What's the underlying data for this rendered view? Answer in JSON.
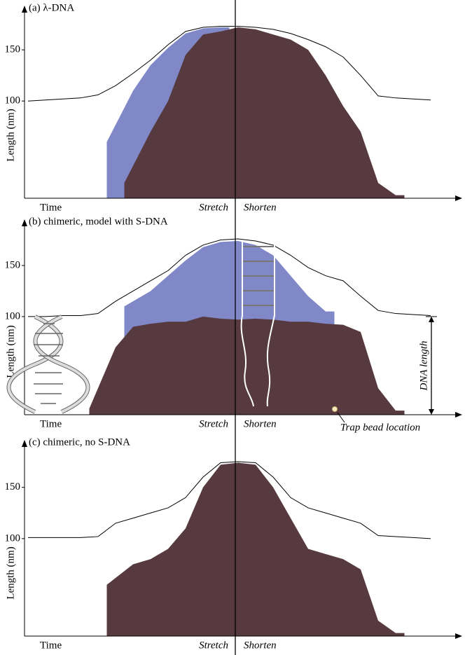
{
  "chart_data": [
    {
      "type": "area",
      "title": "(a) λ-DNA",
      "y_label": "Length (nm)",
      "annotations": [
        "Time",
        "Stretch",
        "Shorten"
      ],
      "categories": [
        null,
        null,
        null,
        null,
        null,
        null,
        null,
        null,
        null,
        null,
        null,
        null,
        null,
        null,
        null,
        null,
        null,
        null,
        null,
        null,
        null,
        null,
        null,
        null,
        null
      ],
      "ylim": [
        5,
        185
      ],
      "yticks": [
        100,
        150
      ],
      "series": [
        {
          "kind": "line",
          "color": "#000000",
          "values": [
            100,
            101,
            102,
            103,
            106,
            115,
            127,
            140,
            155,
            168,
            172,
            173,
            173,
            172,
            170,
            166,
            160,
            153,
            143,
            125,
            105,
            103,
            102,
            101,
            null
          ]
        },
        {
          "kind": "area",
          "color": "#8088c8",
          "values": [
            null,
            null,
            null,
            null,
            null,
            60,
            110,
            135,
            152,
            166,
            171,
            172,
            null,
            null,
            null,
            null,
            null,
            null,
            null,
            null,
            null,
            null,
            null,
            null,
            null
          ]
        },
        {
          "kind": "area",
          "color": "#573a3f",
          "values": [
            null,
            null,
            null,
            null,
            null,
            null,
            20,
            70,
            100,
            145,
            165,
            168,
            172,
            170,
            165,
            160,
            150,
            125,
            95,
            70,
            20,
            8,
            null,
            null,
            null
          ]
        }
      ]
    },
    {
      "type": "area",
      "title": "(b) chimeric, model with S-DNA",
      "y_label": "Length (nm)",
      "annotations": [
        "Time",
        "Stretch",
        "Shorten",
        "DNA length",
        "Trap bead location"
      ],
      "categories": [
        null,
        null,
        null,
        null,
        null,
        null,
        null,
        null,
        null,
        null,
        null,
        null,
        null,
        null,
        null,
        null,
        null,
        null,
        null,
        null,
        null,
        null,
        null,
        null,
        null
      ],
      "ylim": [
        4,
        187
      ],
      "yticks": [
        100,
        150
      ],
      "series": [
        {
          "kind": "line",
          "color": "#000000",
          "values": [
            100,
            100,
            101,
            101,
            103,
            115,
            125,
            135,
            145,
            160,
            170,
            175,
            176,
            174,
            170,
            160,
            148,
            140,
            135,
            120,
            106,
            103,
            102,
            101,
            null
          ]
        },
        {
          "kind": "area",
          "color": "#8088c8",
          "values": [
            null,
            null,
            null,
            null,
            null,
            null,
            110,
            125,
            140,
            155,
            168,
            173,
            174,
            170,
            160,
            140,
            120,
            105,
            null,
            null,
            null,
            null,
            null,
            null,
            null
          ]
        },
        {
          "kind": "area",
          "color": "#573a3f",
          "values": [
            null,
            null,
            null,
            null,
            10,
            70,
            90,
            93,
            95,
            95,
            100,
            98,
            97,
            98,
            97,
            95,
            95,
            93,
            92,
            85,
            30,
            8,
            null,
            null,
            null
          ]
        }
      ]
    },
    {
      "type": "area",
      "title": "(c) chimeric, no S-DNA",
      "y_label": "Length (nm)",
      "annotations": [
        "Time",
        "Stretch",
        "Shorten"
      ],
      "categories": [
        null,
        null,
        null,
        null,
        null,
        null,
        null,
        null,
        null,
        null,
        null,
        null,
        null,
        null,
        null,
        null,
        null,
        null,
        null,
        null,
        null,
        null,
        null,
        null,
        null
      ],
      "ylim": [
        5,
        188
      ],
      "yticks": [
        100,
        150
      ],
      "series": [
        {
          "kind": "line",
          "color": "#000000",
          "values": [
            101,
            101,
            101,
            101,
            102,
            115,
            120,
            125,
            130,
            140,
            160,
            174,
            175,
            174,
            160,
            140,
            130,
            125,
            120,
            115,
            103,
            102,
            101,
            100,
            null
          ]
        },
        {
          "kind": "area",
          "color": "#573a3f",
          "values": [
            null,
            null,
            null,
            null,
            null,
            55,
            75,
            80,
            90,
            110,
            150,
            172,
            174,
            172,
            150,
            120,
            90,
            85,
            80,
            70,
            20,
            8,
            null,
            null,
            null
          ]
        }
      ]
    }
  ]
}
